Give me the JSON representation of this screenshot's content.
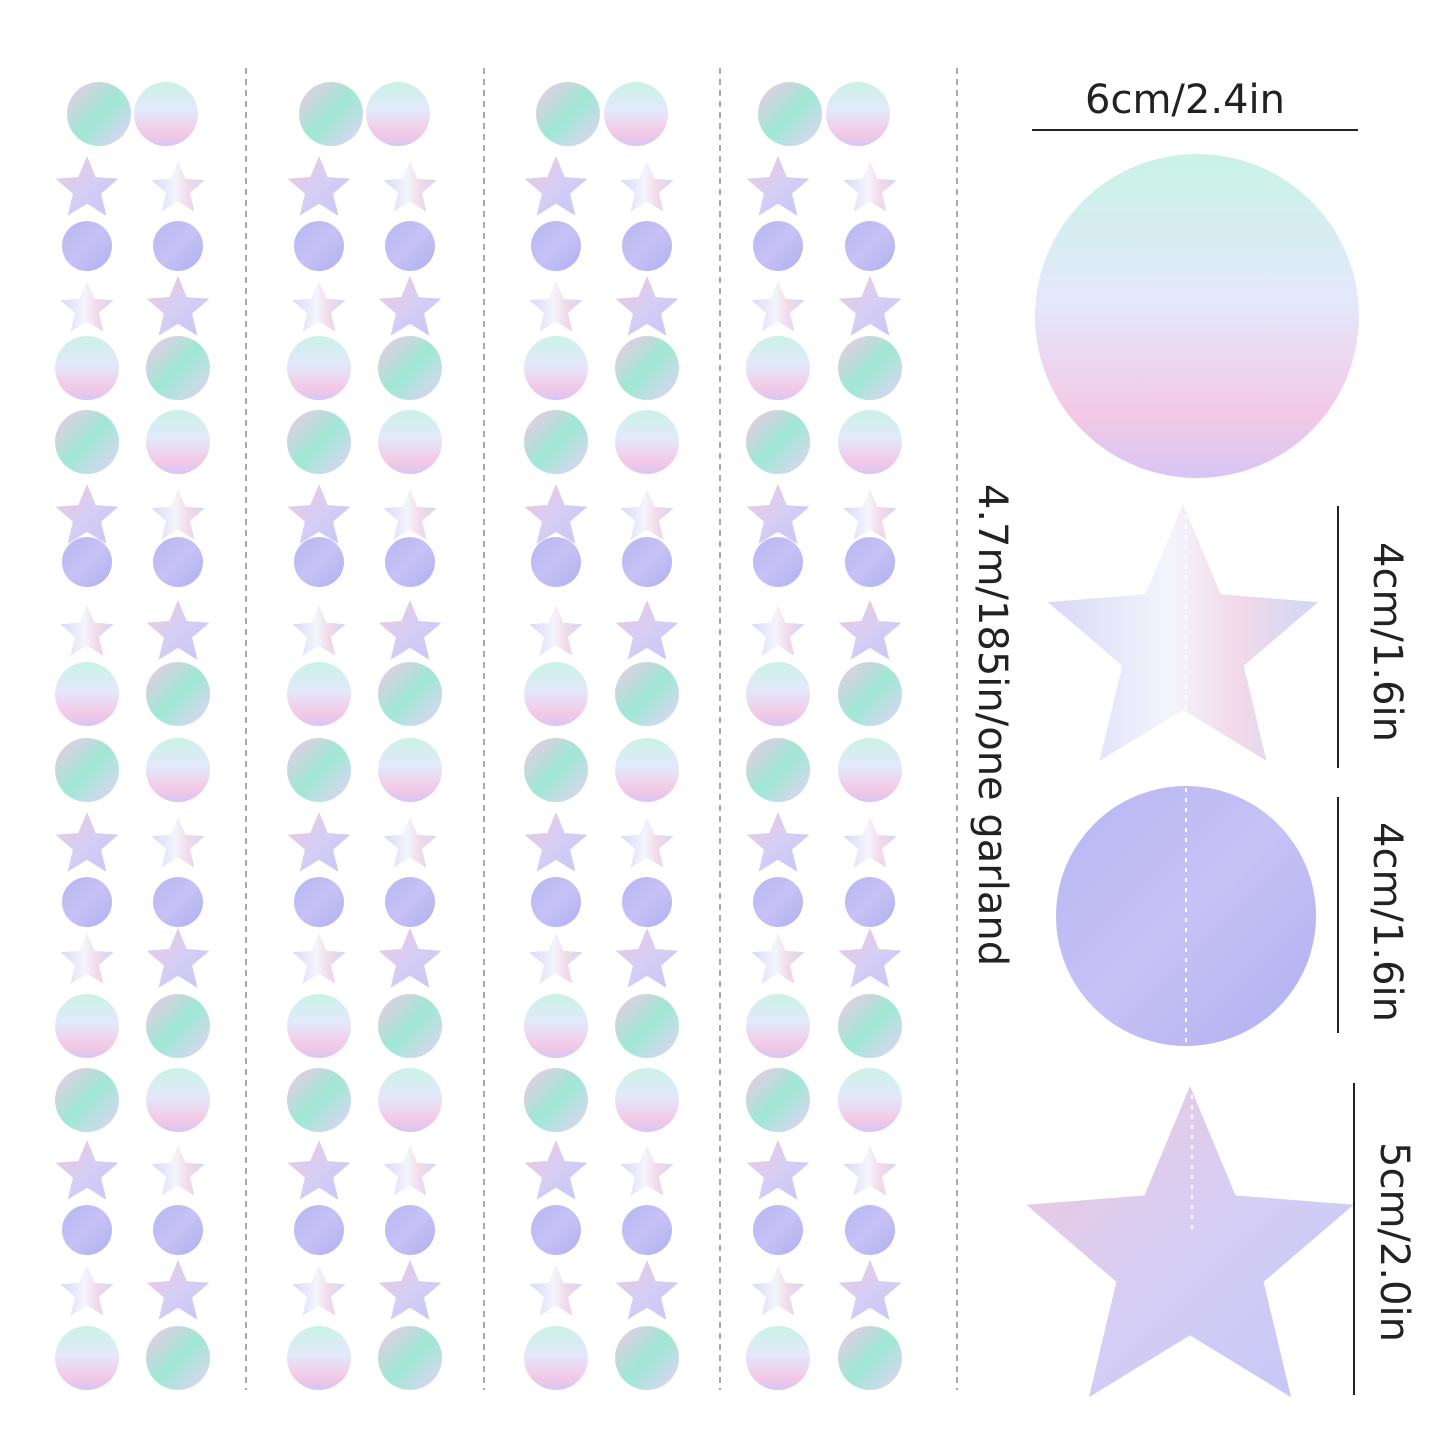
{
  "dimensions": {
    "big_circle": "6cm/2.4in",
    "garland_length": "4.7m/185in/one garland",
    "small_star": "4cm/1.6in",
    "small_circle": "4cm/1.6in",
    "big_star": "5cm/2.0in"
  }
}
